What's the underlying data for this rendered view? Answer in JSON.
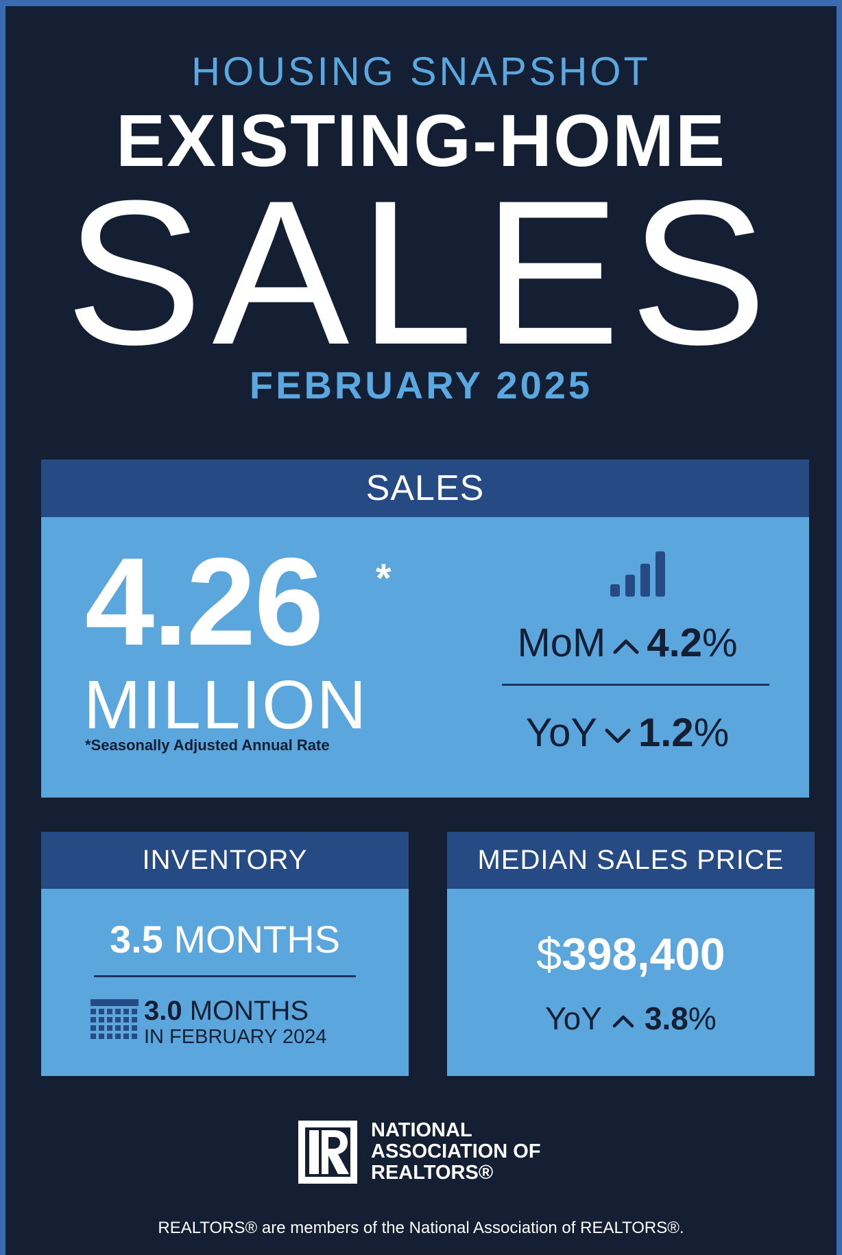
{
  "header": {
    "kicker": "HOUSING SNAPSHOT",
    "headline": "EXISTING-HOME",
    "headline_big": "SALES",
    "date": "FEBRUARY 2025"
  },
  "sales": {
    "title": "SALES",
    "value": "4.26",
    "asterisk": "*",
    "unit": "MILLION",
    "footnote": "*Seasonally Adjusted Annual Rate",
    "mom": {
      "label": "MoM",
      "direction": "up",
      "value": "4.2",
      "pct": "%"
    },
    "yoy": {
      "label": "YoY",
      "direction": "down",
      "value": "1.2",
      "pct": "%"
    }
  },
  "inventory": {
    "title": "INVENTORY",
    "value": "3.5",
    "unit": "MONTHS",
    "prev_value": "3.0",
    "prev_unit": "MONTHS",
    "prev_period": "IN FEBRUARY 2024"
  },
  "median_price": {
    "title": "MEDIAN SALES PRICE",
    "currency": "$",
    "value": "398,400",
    "yoy": {
      "label": "YoY",
      "direction": "up",
      "value": "3.8",
      "pct": "%"
    }
  },
  "logo": {
    "icon": "realtor-r-logo",
    "line1": "NATIONAL",
    "line2": "ASSOCIATION OF",
    "line3": "REALTORS®"
  },
  "footer": {
    "text": "REALTORS® are members of the National Association of REALTORS®."
  },
  "colors": {
    "background": "#141f33",
    "accent": "#5ba7e0",
    "panel_head": "#264a83",
    "panel_body": "#5ba6dc"
  }
}
